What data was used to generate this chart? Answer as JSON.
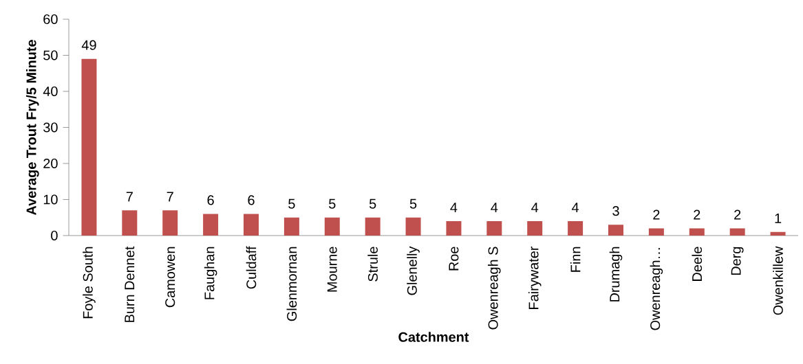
{
  "chart_data": {
    "type": "bar",
    "xlabel": "Catchment",
    "ylabel": "Average Trout Fry/5 Minute",
    "categories": [
      "Foyle South",
      "Burn Dennet",
      "Camowen",
      "Faughan",
      "Culdaff",
      "Glenmornan",
      "Mourne",
      "Strule",
      "Glenelly",
      "Roe",
      "Owenreagh S",
      "Fairywater",
      "Finn",
      "Drumagh",
      "Owenreagh…",
      "Deele",
      "Derg",
      "Owenkillew"
    ],
    "values": [
      49,
      7,
      7,
      6,
      6,
      5,
      5,
      5,
      5,
      4,
      4,
      4,
      4,
      3,
      2,
      2,
      2,
      1
    ],
    "color": "#c0504d",
    "ylim": [
      0,
      60
    ],
    "yticks": [
      0,
      10,
      20,
      30,
      40,
      50,
      60
    ],
    "data_labels": true,
    "grid": false
  }
}
